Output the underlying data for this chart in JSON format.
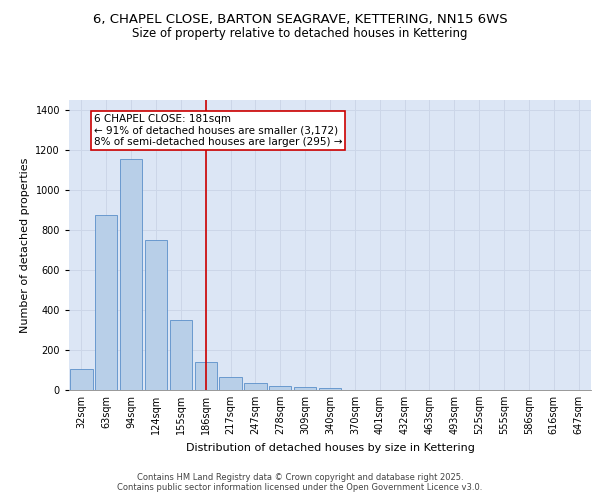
{
  "title_line1": "6, CHAPEL CLOSE, BARTON SEAGRAVE, KETTERING, NN15 6WS",
  "title_line2": "Size of property relative to detached houses in Kettering",
  "xlabel": "Distribution of detached houses by size in Kettering",
  "ylabel": "Number of detached properties",
  "categories": [
    "32sqm",
    "63sqm",
    "94sqm",
    "124sqm",
    "155sqm",
    "186sqm",
    "217sqm",
    "247sqm",
    "278sqm",
    "309sqm",
    "340sqm",
    "370sqm",
    "401sqm",
    "432sqm",
    "463sqm",
    "493sqm",
    "525sqm",
    "555sqm",
    "586sqm",
    "616sqm",
    "647sqm"
  ],
  "values": [
    105,
    875,
    1155,
    750,
    350,
    140,
    65,
    35,
    20,
    13,
    12,
    0,
    0,
    0,
    0,
    0,
    0,
    0,
    0,
    0,
    0
  ],
  "bar_color": "#b8cfe8",
  "bar_edge_color": "#5b8fc9",
  "red_line_index": 5,
  "annotation_text": "6 CHAPEL CLOSE: 181sqm\n← 91% of detached houses are smaller (3,172)\n8% of semi-detached houses are larger (295) →",
  "annotation_box_color": "#ffffff",
  "annotation_box_edge": "#cc0000",
  "red_line_color": "#cc0000",
  "ylim": [
    0,
    1450
  ],
  "yticks": [
    0,
    200,
    400,
    600,
    800,
    1000,
    1200,
    1400
  ],
  "grid_color": "#ccd6e8",
  "background_color": "#dce6f5",
  "footer_text": "Contains HM Land Registry data © Crown copyright and database right 2025.\nContains public sector information licensed under the Open Government Licence v3.0.",
  "title_fontsize": 9.5,
  "subtitle_fontsize": 8.5,
  "axis_label_fontsize": 8,
  "tick_fontsize": 7,
  "annotation_fontsize": 7.5,
  "footer_fontsize": 6
}
